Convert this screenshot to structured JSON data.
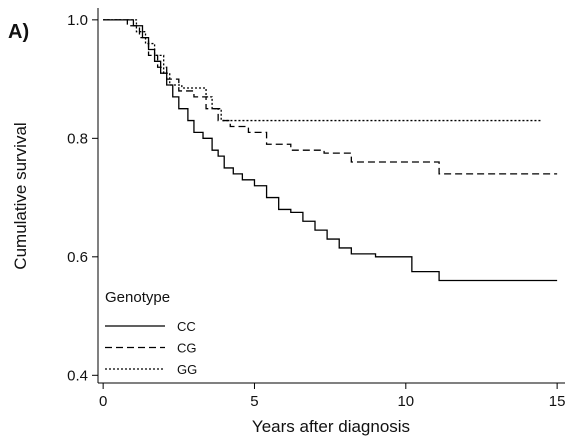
{
  "chart_data": {
    "type": "line",
    "drawstyle": "steps-post",
    "panel_label": "A)",
    "x_label": "Years after diagnosis",
    "y_label": "Cumulative survival",
    "legend_title": "Genotype",
    "legend": "lower left",
    "xlim": [
      -0.17,
      15.26
    ],
    "ylim": [
      0.387,
      1.02
    ],
    "xticks": [
      0,
      5,
      10,
      15
    ],
    "yticks": [
      {
        "value": 1.0,
        "label": "1.0"
      },
      0.8,
      0.6,
      0.4
    ],
    "series": [
      {
        "name": "CC",
        "color": "#000000",
        "dash": "solid",
        "x": [
          0,
          1,
          1.3,
          1.5,
          1.7,
          1.9,
          2.1,
          2.3,
          2.5,
          2.8,
          3.0,
          3.3,
          3.6,
          3.8,
          4.0,
          4.3,
          4.6,
          5.0,
          5.4,
          5.8,
          6.2,
          6.6,
          7.0,
          7.4,
          7.8,
          8.2,
          9.0,
          10.2,
          11.1,
          15
        ],
        "values": [
          1.0,
          0.99,
          0.97,
          0.95,
          0.93,
          0.91,
          0.89,
          0.87,
          0.85,
          0.83,
          0.81,
          0.8,
          0.78,
          0.77,
          0.75,
          0.74,
          0.73,
          0.72,
          0.7,
          0.68,
          0.675,
          0.66,
          0.645,
          0.63,
          0.615,
          0.605,
          0.6,
          0.575,
          0.56,
          0.56
        ]
      },
      {
        "name": "CG",
        "color": "#000000",
        "dash": "dashed",
        "x": [
          0,
          0.8,
          1.2,
          1.5,
          1.8,
          2.1,
          2.5,
          3.0,
          3.4,
          3.8,
          4.2,
          4.8,
          5.4,
          6.2,
          7.3,
          8.2,
          11.1,
          15
        ],
        "values": [
          1.0,
          0.99,
          0.97,
          0.94,
          0.92,
          0.9,
          0.88,
          0.87,
          0.85,
          0.83,
          0.82,
          0.81,
          0.79,
          0.78,
          0.775,
          0.76,
          0.74,
          0.74
        ]
      },
      {
        "name": "GG",
        "color": "#000000",
        "dash": "dotted",
        "x": [
          0,
          1.1,
          1.4,
          1.7,
          2.0,
          2.2,
          2.6,
          3.4,
          3.6,
          3.9,
          14.5
        ],
        "values": [
          1.0,
          0.98,
          0.96,
          0.94,
          0.91,
          0.89,
          0.885,
          0.87,
          0.85,
          0.83,
          0.83
        ]
      }
    ]
  }
}
